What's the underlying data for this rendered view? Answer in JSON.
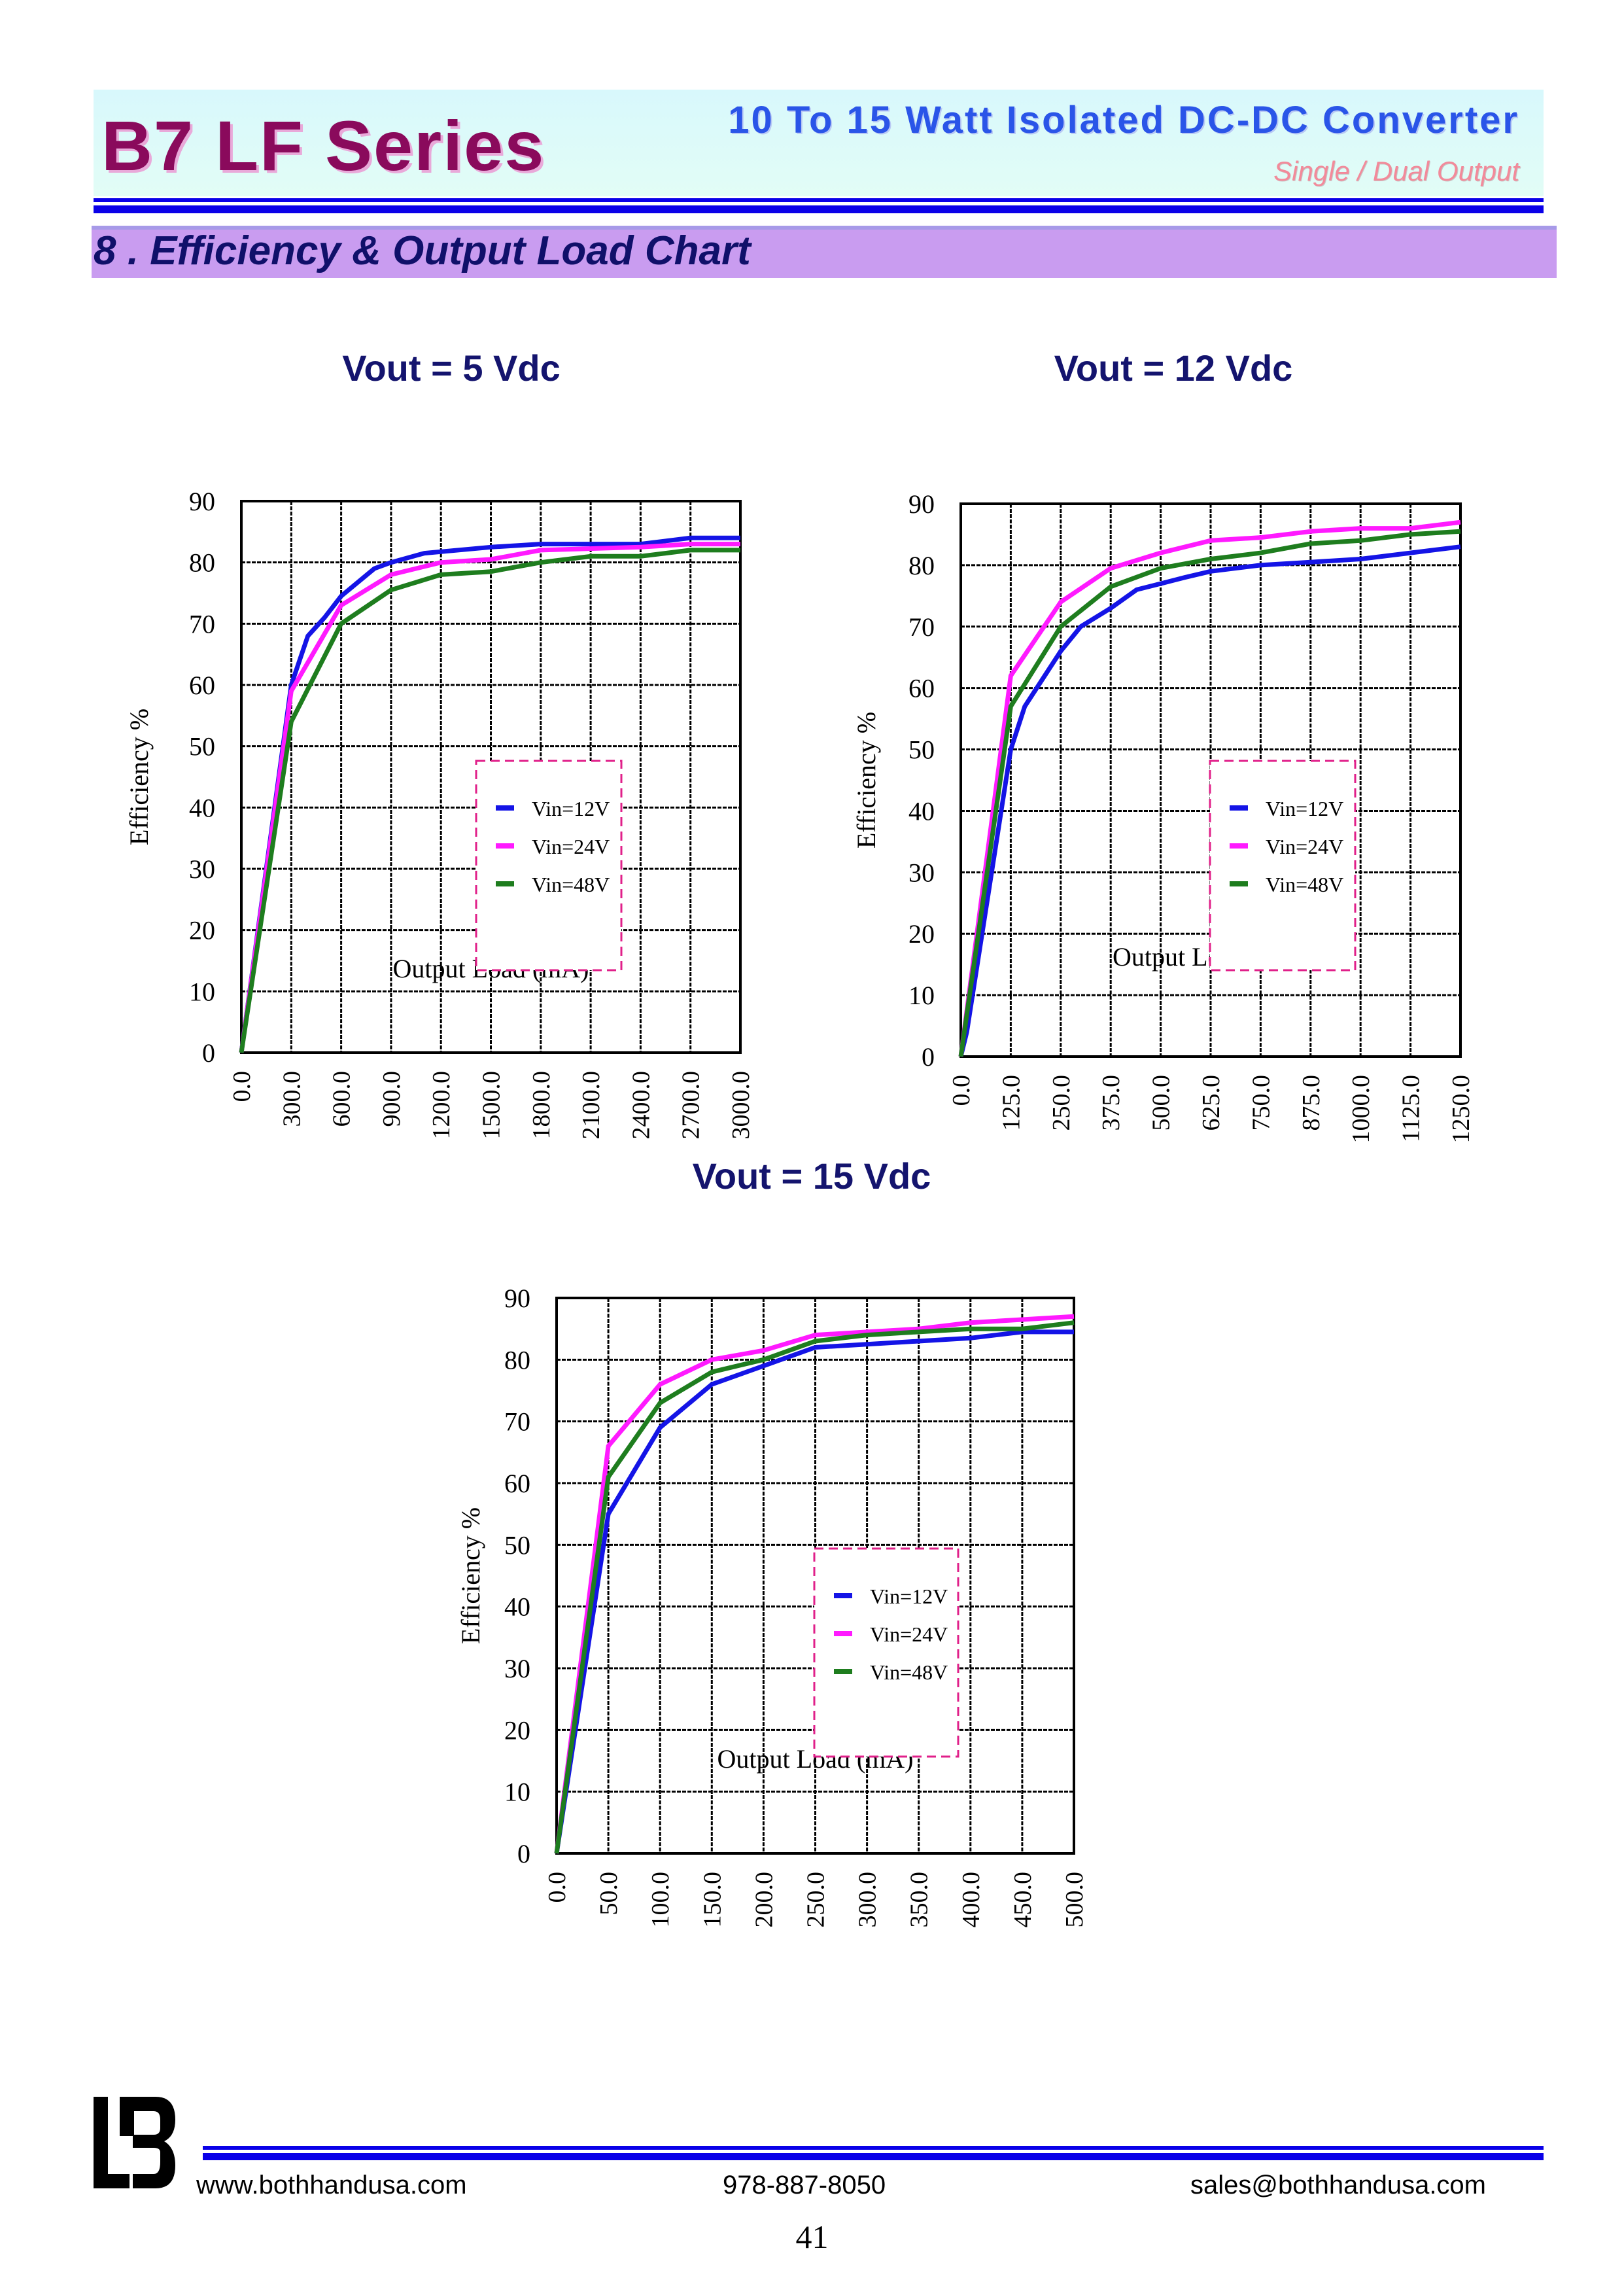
{
  "header": {
    "series_title": "B7 LF Series",
    "subtitle": "10 To 15 Watt Isolated DC-DC Converter",
    "output_type": "Single / Dual Output"
  },
  "section_title": "8 . Efficiency & Output Load Chart",
  "colors": {
    "vin12": "#1414e6",
    "vin24": "#ff1aff",
    "vin48": "#1e7d1e",
    "legend_border": "#e0208a"
  },
  "chart_data": [
    {
      "type": "line",
      "title": "Vout = 5 Vdc",
      "xlabel": "Output Load (mA)",
      "ylabel": "Efficiency %",
      "xlim": [
        0,
        3000
      ],
      "ylim": [
        0,
        90
      ],
      "x_tick_labels": [
        "0.0",
        "300.0",
        "600.0",
        "900.0",
        "1200.0",
        "1500.0",
        "1800.0",
        "2100.0",
        "2400.0",
        "2700.0",
        "3000.0"
      ],
      "y_tick_labels": [
        "0",
        "10",
        "20",
        "30",
        "40",
        "50",
        "60",
        "70",
        "80",
        "90"
      ],
      "grid": true,
      "legend_position": "center-right",
      "series": [
        {
          "name": "Vin=12V",
          "color": "#1414e6",
          "points": [
            [
              0,
              0
            ],
            [
              150,
              30
            ],
            [
              250,
              50
            ],
            [
              300,
              60
            ],
            [
              350,
              64
            ],
            [
              400,
              68
            ],
            [
              500,
              71
            ],
            [
              600,
              74.5
            ],
            [
              800,
              79
            ],
            [
              900,
              80
            ],
            [
              1100,
              81.5
            ],
            [
              1500,
              82.5
            ],
            [
              1800,
              83
            ],
            [
              2400,
              83
            ],
            [
              2700,
              84
            ],
            [
              3000,
              84
            ]
          ]
        },
        {
          "name": "Vin=24V",
          "color": "#ff1aff",
          "points": [
            [
              0,
              0
            ],
            [
              300,
              59
            ],
            [
              600,
              73
            ],
            [
              900,
              78
            ],
            [
              1200,
              80
            ],
            [
              1500,
              80.5
            ],
            [
              1800,
              82
            ],
            [
              2400,
              82.5
            ],
            [
              2700,
              83
            ],
            [
              3000,
              83
            ]
          ]
        },
        {
          "name": "Vin=48V",
          "color": "#1e7d1e",
          "points": [
            [
              0,
              0
            ],
            [
              300,
              54
            ],
            [
              600,
              70
            ],
            [
              900,
              75.5
            ],
            [
              1200,
              78
            ],
            [
              1500,
              78.5
            ],
            [
              1800,
              80
            ],
            [
              2100,
              81
            ],
            [
              2400,
              81
            ],
            [
              2700,
              82
            ],
            [
              3000,
              82
            ]
          ]
        }
      ]
    },
    {
      "type": "line",
      "title": "Vout = 12 Vdc",
      "xlabel": "Output Load (mA)",
      "ylabel": "Efficiency %",
      "xlim": [
        0,
        1250
      ],
      "ylim": [
        0,
        90
      ],
      "x_tick_labels": [
        "0.0",
        "125.0",
        "250.0",
        "375.0",
        "500.0",
        "625.0",
        "750.0",
        "875.0",
        "1000.0",
        "1125.0",
        "1250.0"
      ],
      "y_tick_labels": [
        "0",
        "10",
        "20",
        "30",
        "40",
        "50",
        "60",
        "70",
        "80",
        "90"
      ],
      "grid": true,
      "legend_position": "center-right",
      "series": [
        {
          "name": "Vin=12V",
          "color": "#1414e6",
          "points": [
            [
              0,
              0
            ],
            [
              15,
              4
            ],
            [
              125,
              50
            ],
            [
              160,
              57
            ],
            [
              200,
              61
            ],
            [
              250,
              66
            ],
            [
              300,
              70
            ],
            [
              375,
              73
            ],
            [
              440,
              76
            ],
            [
              500,
              77
            ],
            [
              560,
              78
            ],
            [
              625,
              79
            ],
            [
              750,
              80
            ],
            [
              875,
              80.5
            ],
            [
              1000,
              81
            ],
            [
              1125,
              82
            ],
            [
              1250,
              83
            ]
          ]
        },
        {
          "name": "Vin=24V",
          "color": "#ff1aff",
          "points": [
            [
              0,
              0
            ],
            [
              125,
              62
            ],
            [
              250,
              74
            ],
            [
              375,
              79.5
            ],
            [
              500,
              82
            ],
            [
              625,
              84
            ],
            [
              750,
              84.5
            ],
            [
              875,
              85.5
            ],
            [
              1000,
              86
            ],
            [
              1125,
              86
            ],
            [
              1250,
              87
            ]
          ]
        },
        {
          "name": "Vin=48V",
          "color": "#1e7d1e",
          "points": [
            [
              0,
              0
            ],
            [
              125,
              57
            ],
            [
              250,
              70
            ],
            [
              375,
              76.5
            ],
            [
              500,
              79.5
            ],
            [
              625,
              81
            ],
            [
              750,
              82
            ],
            [
              875,
              83.5
            ],
            [
              1000,
              84
            ],
            [
              1125,
              85
            ],
            [
              1250,
              85.5
            ]
          ]
        }
      ]
    },
    {
      "type": "line",
      "title": "Vout = 15 Vdc",
      "xlabel": "Output Load (mA)",
      "ylabel": "Efficiency %",
      "xlim": [
        0,
        500
      ],
      "ylim": [
        0,
        90
      ],
      "x_tick_labels": [
        "0.0",
        "50.0",
        "100.0",
        "150.0",
        "200.0",
        "250.0",
        "300.0",
        "350.0",
        "400.0",
        "450.0",
        "500.0"
      ],
      "y_tick_labels": [
        "0",
        "10",
        "20",
        "30",
        "40",
        "50",
        "60",
        "70",
        "80",
        "90"
      ],
      "grid": true,
      "legend_position": "center-right",
      "series": [
        {
          "name": "Vin=12V",
          "color": "#1414e6",
          "points": [
            [
              0,
              0
            ],
            [
              50,
              55
            ],
            [
              100,
              69
            ],
            [
              150,
              76
            ],
            [
              200,
              79
            ],
            [
              250,
              82
            ],
            [
              300,
              82.5
            ],
            [
              350,
              83
            ],
            [
              400,
              83.5
            ],
            [
              450,
              84.5
            ],
            [
              500,
              84.5
            ]
          ]
        },
        {
          "name": "Vin=24V",
          "color": "#ff1aff",
          "points": [
            [
              0,
              0
            ],
            [
              50,
              66
            ],
            [
              100,
              76
            ],
            [
              150,
              80
            ],
            [
              200,
              81.5
            ],
            [
              250,
              84
            ],
            [
              300,
              84.5
            ],
            [
              350,
              85
            ],
            [
              400,
              86
            ],
            [
              450,
              86.5
            ],
            [
              500,
              87
            ]
          ]
        },
        {
          "name": "Vin=48V",
          "color": "#1e7d1e",
          "points": [
            [
              0,
              0
            ],
            [
              50,
              61
            ],
            [
              100,
              73
            ],
            [
              150,
              78
            ],
            [
              200,
              80
            ],
            [
              250,
              83
            ],
            [
              300,
              84
            ],
            [
              350,
              84.5
            ],
            [
              400,
              85
            ],
            [
              450,
              85
            ],
            [
              500,
              86
            ]
          ]
        }
      ]
    }
  ],
  "footer": {
    "logo_text": "LB",
    "website": "www.bothhandusa.com",
    "phone": "978-887-8050",
    "email": "sales@bothhandusa.com",
    "page_number": "41"
  }
}
